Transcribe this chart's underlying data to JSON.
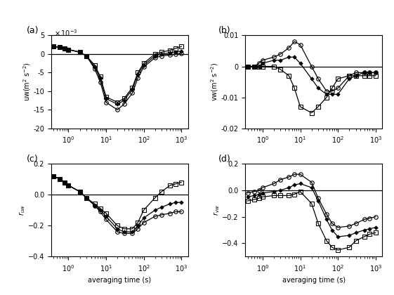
{
  "x": [
    0.4,
    0.6,
    0.8,
    1.0,
    2.0,
    3.0,
    5.0,
    7.0,
    10.0,
    20.0,
    30.0,
    50.0,
    70.0,
    100.0,
    200.0,
    300.0,
    500.0,
    700.0,
    1000.0
  ],
  "uw_sq": [
    0.002,
    0.0018,
    0.0015,
    0.0012,
    0.0005,
    -0.0005,
    -0.003,
    -0.006,
    -0.0115,
    -0.013,
    -0.012,
    -0.009,
    -0.005,
    -0.0025,
    0.0,
    0.0005,
    0.001,
    0.0015,
    0.002
  ],
  "uw_dia": [
    0.002,
    0.0018,
    0.0015,
    0.0012,
    0.0005,
    -0.0005,
    -0.0035,
    -0.0065,
    -0.012,
    -0.0135,
    -0.0125,
    -0.0095,
    -0.0055,
    -0.003,
    -0.0005,
    0.0,
    0.0003,
    0.0006,
    0.0008
  ],
  "uw_circ": [
    0.002,
    0.0018,
    0.0015,
    0.0012,
    0.0005,
    -0.0005,
    -0.004,
    -0.0075,
    -0.013,
    -0.015,
    -0.0135,
    -0.0105,
    -0.0065,
    -0.0035,
    -0.001,
    -0.0005,
    -0.0003,
    0.0,
    0.0002
  ],
  "vw_sq": [
    0.0,
    0.0,
    0.0,
    0.0,
    0.0,
    -0.001,
    -0.003,
    -0.007,
    -0.013,
    -0.015,
    -0.013,
    -0.01,
    -0.007,
    -0.004,
    -0.003,
    -0.003,
    -0.003,
    -0.003,
    -0.003
  ],
  "vw_dia": [
    0.0,
    0.0,
    0.0,
    0.001,
    0.002,
    0.002,
    0.003,
    0.003,
    0.001,
    -0.004,
    -0.007,
    -0.009,
    -0.009,
    -0.009,
    -0.004,
    -0.003,
    -0.002,
    -0.002,
    -0.002
  ],
  "vw_circ": [
    0.0,
    0.0,
    0.001,
    0.002,
    0.003,
    0.004,
    0.006,
    0.008,
    0.007,
    0.0,
    -0.004,
    -0.008,
    -0.008,
    -0.007,
    -0.003,
    -0.002,
    -0.002,
    -0.002,
    -0.002
  ],
  "ruw_sq": [
    0.12,
    0.1,
    0.08,
    0.06,
    0.02,
    -0.02,
    -0.06,
    -0.09,
    -0.12,
    -0.2,
    -0.22,
    -0.22,
    -0.18,
    -0.1,
    -0.02,
    0.02,
    0.06,
    0.07,
    0.08
  ],
  "ruw_dia": [
    0.12,
    0.1,
    0.08,
    0.06,
    0.02,
    -0.02,
    -0.07,
    -0.1,
    -0.14,
    -0.22,
    -0.24,
    -0.24,
    -0.2,
    -0.15,
    -0.1,
    -0.08,
    -0.06,
    -0.05,
    -0.05
  ],
  "ruw_circ": [
    0.12,
    0.1,
    0.08,
    0.06,
    0.02,
    -0.02,
    -0.07,
    -0.11,
    -0.16,
    -0.24,
    -0.25,
    -0.25,
    -0.22,
    -0.18,
    -0.14,
    -0.13,
    -0.12,
    -0.11,
    -0.11
  ],
  "rvw_sq": [
    -0.08,
    -0.07,
    -0.06,
    -0.05,
    -0.04,
    -0.04,
    -0.04,
    -0.03,
    -0.01,
    -0.1,
    -0.25,
    -0.38,
    -0.43,
    -0.45,
    -0.43,
    -0.38,
    -0.35,
    -0.33,
    -0.32
  ],
  "rvw_dia": [
    -0.05,
    -0.04,
    -0.03,
    -0.02,
    -0.01,
    0.0,
    0.02,
    0.04,
    0.05,
    0.02,
    -0.08,
    -0.22,
    -0.3,
    -0.35,
    -0.34,
    -0.32,
    -0.3,
    -0.29,
    -0.28
  ],
  "rvw_circ": [
    -0.02,
    -0.01,
    0.0,
    0.02,
    0.05,
    0.08,
    0.1,
    0.12,
    0.12,
    0.06,
    -0.06,
    -0.18,
    -0.25,
    -0.28,
    -0.27,
    -0.25,
    -0.22,
    -0.21,
    -0.2
  ],
  "xlabel": "averaging time (s)",
  "xlim": [
    0.35,
    1500
  ],
  "uw_ylim": [
    -0.02,
    0.005
  ],
  "vw_ylim": [
    -0.02,
    0.01
  ],
  "ruw_ylim": [
    -0.4,
    0.2
  ],
  "rvw_ylim": [
    -0.5,
    0.2
  ],
  "uw_yticks": [
    -0.02,
    -0.015,
    -0.01,
    -0.005,
    0.0,
    0.005
  ],
  "uw_yticklabels": [
    "-20",
    "-15",
    "-10",
    "-5",
    "0",
    "5"
  ],
  "vw_yticks": [
    -0.02,
    -0.01,
    0,
    0.01
  ],
  "vw_yticklabels": [
    "-0.02",
    "-0.01",
    "0",
    "0.01"
  ],
  "ruw_yticks": [
    -0.4,
    -0.2,
    0,
    0.2
  ],
  "rvw_yticks": [
    -0.4,
    -0.2,
    0,
    0.2
  ]
}
